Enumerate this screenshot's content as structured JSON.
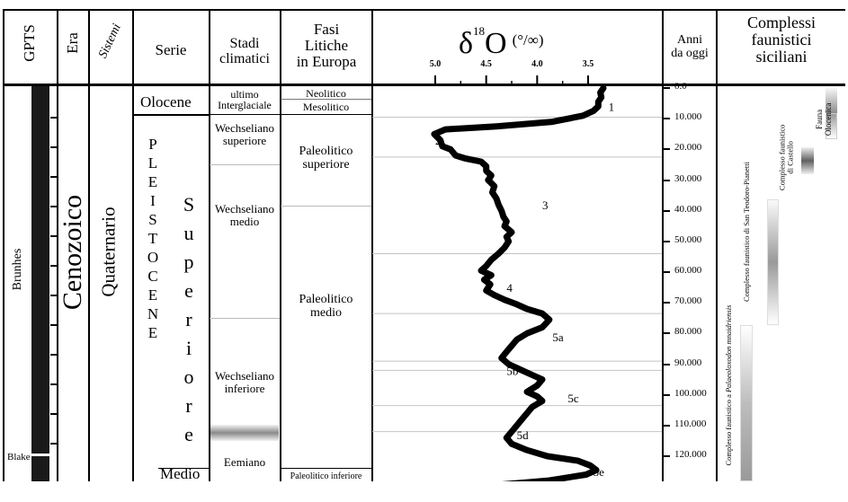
{
  "headers": {
    "gpts": "GPTS",
    "era": "Era",
    "sistemi": "Sistemi",
    "serie": "Serie",
    "stadi_l1": "Stadi",
    "stadi_l2": "climatici",
    "fasi_l1": "Fasi",
    "fasi_l2": "Litiche",
    "fasi_l3": "in Europa",
    "delta_symbol": "δ",
    "delta_sup": "18",
    "delta_o": "O",
    "delta_unit": "(°/∞)",
    "anni_l1": "Anni",
    "anni_l2": "da oggi",
    "complessi_l1": "Complessi",
    "complessi_l2": "faunistici",
    "complessi_l3": "siciliani"
  },
  "gpts": {
    "brunhes": "Brunhes",
    "blake": "Blake"
  },
  "era": "Cenozoico",
  "sistema": "Quaternario",
  "serie": {
    "olocene": "Olocene",
    "pleistocene": [
      "P",
      "L",
      "E",
      "I",
      "S",
      "T",
      "O",
      "C",
      "E",
      "N",
      "E"
    ],
    "superiore": [
      "S",
      "u",
      "p",
      "e",
      "r",
      "i",
      "o",
      "r",
      "e"
    ],
    "medio": "Medio"
  },
  "stadi": {
    "ultimo_l1": "ultimo",
    "ultimo_l2": "Interglaciale",
    "wsup_l1": "Wechseliano",
    "wsup_l2": "superiore",
    "wmed_l1": "Wechseliano",
    "wmed_l2": "medio",
    "winf_l1": "Wechseliano",
    "winf_l2": "inferiore",
    "eemiano": "Eemiano"
  },
  "fasi": {
    "neolitico": "Neolitico",
    "mesolitico": "Mesolitico",
    "psup_l1": "Paleolitico",
    "psup_l2": "superiore",
    "pmed_l1": "Paleolitico",
    "pmed_l2": "medio",
    "pinf": "Paleolitico inferiore"
  },
  "chart_data": {
    "type": "line",
    "x_label": "δ18O (°/∞)",
    "x_ticks": [
      "5.0",
      "4.5",
      "4.0",
      "3.5"
    ],
    "x_reversed": true,
    "y_label": "Anni da oggi",
    "y_ticks": [
      "0.0",
      "10.000",
      "20.000",
      "30.000",
      "40.000",
      "50.000",
      "60.000",
      "70.000",
      "80.000",
      "90.000",
      "100.000",
      "110.000",
      "120.000"
    ],
    "y_range": [
      0,
      130000
    ],
    "stage_labels": [
      {
        "label": "1",
        "x": 3.3,
        "y": 6000
      },
      {
        "label": "2",
        "x": 5.0,
        "y": 17000
      },
      {
        "label": "3",
        "x": 3.95,
        "y": 38000
      },
      {
        "label": "4",
        "x": 4.3,
        "y": 65000
      },
      {
        "label": "5a",
        "x": 3.85,
        "y": 81000
      },
      {
        "label": "5b",
        "x": 4.3,
        "y": 92000
      },
      {
        "label": "5c",
        "x": 3.7,
        "y": 101000
      },
      {
        "label": "5d",
        "x": 4.2,
        "y": 113000
      },
      {
        "label": "5e",
        "x": 3.45,
        "y": 125000
      }
    ],
    "series": [
      {
        "points": [
          [
            3.35,
            0
          ],
          [
            3.38,
            1500
          ],
          [
            3.37,
            3000
          ],
          [
            3.4,
            4500
          ],
          [
            3.4,
            6000
          ],
          [
            3.45,
            7500
          ],
          [
            3.55,
            9000
          ],
          [
            3.85,
            11000
          ],
          [
            4.4,
            12500
          ],
          [
            4.9,
            13500
          ],
          [
            5.01,
            15000
          ],
          [
            4.95,
            17000
          ],
          [
            4.93,
            19000
          ],
          [
            4.85,
            20000
          ],
          [
            4.8,
            22000
          ],
          [
            4.7,
            23000
          ],
          [
            4.55,
            24000
          ],
          [
            4.5,
            25500
          ],
          [
            4.5,
            27000
          ],
          [
            4.45,
            28500
          ],
          [
            4.48,
            30000
          ],
          [
            4.42,
            32000
          ],
          [
            4.44,
            34000
          ],
          [
            4.4,
            36000
          ],
          [
            4.38,
            38000
          ],
          [
            4.35,
            40000
          ],
          [
            4.33,
            42000
          ],
          [
            4.3,
            43500
          ],
          [
            4.32,
            45000
          ],
          [
            4.25,
            47000
          ],
          [
            4.3,
            48500
          ],
          [
            4.28,
            50000
          ],
          [
            4.32,
            52000
          ],
          [
            4.38,
            54000
          ],
          [
            4.45,
            56000
          ],
          [
            4.5,
            58000
          ],
          [
            4.55,
            59500
          ],
          [
            4.45,
            61000
          ],
          [
            4.52,
            62500
          ],
          [
            4.46,
            64000
          ],
          [
            4.5,
            66000
          ],
          [
            4.42,
            67500
          ],
          [
            4.32,
            69000
          ],
          [
            4.2,
            70500
          ],
          [
            4.1,
            72000
          ],
          [
            3.95,
            73500
          ],
          [
            3.88,
            75500
          ],
          [
            3.95,
            78000
          ],
          [
            4.1,
            80000
          ],
          [
            4.2,
            82000
          ],
          [
            4.25,
            84000
          ],
          [
            4.3,
            86000
          ],
          [
            4.35,
            88000
          ],
          [
            4.28,
            90000
          ],
          [
            4.15,
            92000
          ],
          [
            4.05,
            93500
          ],
          [
            3.95,
            95000
          ],
          [
            4.0,
            97000
          ],
          [
            4.1,
            99000
          ],
          [
            4.0,
            100500
          ],
          [
            3.95,
            102000
          ],
          [
            4.05,
            104000
          ],
          [
            4.1,
            106000
          ],
          [
            4.15,
            108000
          ],
          [
            4.2,
            110000
          ],
          [
            4.25,
            112000
          ],
          [
            4.3,
            114000
          ],
          [
            4.25,
            116000
          ],
          [
            4.1,
            118000
          ],
          [
            3.9,
            120000
          ],
          [
            3.6,
            121500
          ],
          [
            3.48,
            123000
          ],
          [
            3.42,
            124500
          ],
          [
            3.52,
            126000
          ],
          [
            3.9,
            128000
          ],
          [
            4.4,
            129500
          ],
          [
            5.1,
            131000
          ]
        ]
      }
    ]
  },
  "complessi": {
    "fauna_olocenica_l1": "Fauna",
    "fauna_olocenica_l2": "Olocenica",
    "castello_l1": "Complesso faunistico",
    "castello_l2": "di Castello",
    "san_teodoro": "Complesso faunistico di San Teodoro-Pianetti",
    "palaeoloxodon_prefix": "Complesso faunistico a ",
    "palaeoloxodon_species": "Palaeoloxodon mnaidriensis"
  }
}
